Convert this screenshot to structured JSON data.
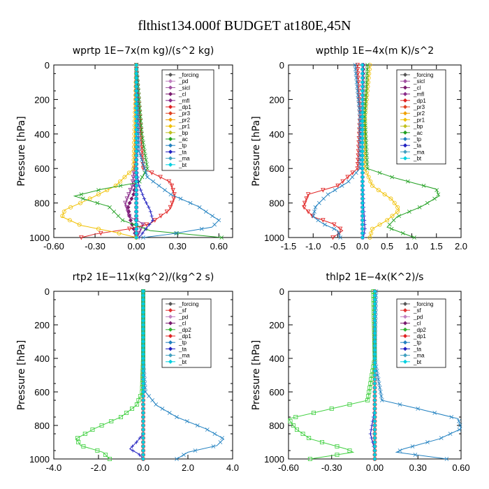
{
  "figure_title": "flthist134.000f  BUDGET at180E,45N",
  "chart_data": [
    {
      "type": "line",
      "title": "wprtp   1E−7x(m kg)/(s^2 kg)",
      "ylabel": "Pressure [hPa]",
      "xlim": [
        -0.6,
        0.7
      ],
      "ylim": [
        1000,
        0
      ],
      "xticks": [
        "-0.60",
        "-0.30",
        "0.00",
        "0.30",
        "0.60"
      ],
      "xtick_values": [
        -0.6,
        -0.3,
        0.0,
        0.3,
        0.6
      ],
      "yticks": [
        "0",
        "200",
        "400",
        "600",
        "800",
        "1000"
      ],
      "legend": [
        "_forcing",
        "_pd",
        "_sicl",
        "_cl",
        "_mfl",
        "_dp1",
        "_pr3",
        "_pr2",
        "_pr1",
        "_bp",
        "_ac",
        "_tp",
        "_ta",
        "_ma",
        "_bt"
      ],
      "series": [
        {
          "name": "_forcing",
          "color": "#6e2f8f",
          "marker": "circle",
          "x": [
            0,
            0,
            0,
            0,
            0,
            0,
            0,
            0
          ],
          "y": [
            0,
            150,
            300,
            450,
            600,
            750,
            900,
            1000
          ]
        },
        {
          "name": "_cl",
          "color": "#7a1a6e",
          "marker": "diamond",
          "x": [
            0,
            0,
            0,
            -0.02,
            -0.06,
            -0.05,
            -0.02,
            0
          ],
          "y": [
            0,
            400,
            650,
            750,
            820,
            880,
            950,
            1000
          ]
        },
        {
          "name": "_mfl",
          "color": "#8a2b8a",
          "marker": "tri",
          "x": [
            0,
            0,
            -0.03,
            -0.08,
            -0.05,
            0.05,
            0.02,
            0
          ],
          "y": [
            0,
            500,
            700,
            800,
            880,
            920,
            970,
            1000
          ]
        },
        {
          "name": "_dp1",
          "color": "#e02020",
          "marker": "tri",
          "x": [
            0,
            0.05,
            0.25,
            0.28,
            0.24,
            0.1,
            -0.05,
            -0.3,
            -0.4
          ],
          "y": [
            0,
            600,
            680,
            760,
            840,
            920,
            950,
            980,
            1000
          ]
        },
        {
          "name": "_pr1",
          "color": "#f0c000",
          "marker": "circle",
          "x": [
            0,
            -0.02,
            -0.15,
            -0.35,
            -0.52,
            -0.54,
            -0.4,
            -0.15,
            0
          ],
          "y": [
            0,
            600,
            700,
            780,
            840,
            880,
            930,
            970,
            1000
          ]
        },
        {
          "name": "_ac",
          "color": "#20a020",
          "marker": "x",
          "x": [
            0,
            0.04,
            0.08,
            0.02,
            -0.25,
            -0.45,
            -0.2,
            -0.1,
            0.1,
            0.62
          ],
          "y": [
            0,
            400,
            600,
            680,
            720,
            760,
            820,
            900,
            960,
            1000
          ]
        },
        {
          "name": "_tp",
          "color": "#2080c0",
          "marker": "x",
          "x": [
            0,
            0.02,
            0.08,
            0.25,
            0.45,
            0.6,
            0.55,
            0.25,
            0.05
          ],
          "y": [
            0,
            500,
            650,
            750,
            820,
            900,
            940,
            980,
            1000
          ]
        },
        {
          "name": "_ta",
          "color": "#2020c0",
          "marker": "plus",
          "x": [
            0,
            0,
            0.02,
            0.06,
            0.1,
            0.12,
            0.06,
            0.02
          ],
          "y": [
            0,
            600,
            700,
            780,
            840,
            900,
            960,
            1000
          ]
        },
        {
          "name": "_bt",
          "color": "#00d0e0",
          "marker": "diamond",
          "x": [
            0,
            0,
            0,
            0
          ],
          "y": [
            0,
            400,
            800,
            1000
          ]
        }
      ]
    },
    {
      "type": "line",
      "title": "wpthlp   1E−4x(m K)/s^2",
      "ylabel": "Pressure [hPa]",
      "xlim": [
        -1.5,
        2.0
      ],
      "ylim": [
        1000,
        0
      ],
      "xticks": [
        "-1.5",
        "-1.0",
        "-0.5",
        "0.0",
        "0.5",
        "1.0",
        "1.5",
        "2.0"
      ],
      "xtick_values": [
        -1.5,
        -1.0,
        -0.5,
        0.0,
        0.5,
        1.0,
        1.5,
        2.0
      ],
      "yticks": [
        "0",
        "200",
        "400",
        "600",
        "800",
        "1000"
      ],
      "legend": [
        "_forcing",
        "_sicl",
        "_cl",
        "_mfl",
        "_dp1",
        "_pr3",
        "_pr2",
        "_pr1",
        "_bp",
        "_ac",
        "_tp",
        "_ta",
        "_ma",
        "_bt"
      ],
      "series": [
        {
          "name": "_forcing",
          "color": "#c080c0",
          "marker": "circle",
          "x": [
            0,
            0,
            0,
            0
          ],
          "y": [
            0,
            400,
            800,
            1000
          ]
        },
        {
          "name": "_cl",
          "color": "#7a1a6e",
          "marker": "diamond",
          "x": [
            0.02,
            0,
            0,
            0,
            0
          ],
          "y": [
            0,
            300,
            600,
            900,
            1000
          ]
        },
        {
          "name": "_dp1",
          "color": "#e02020",
          "marker": "tri",
          "x": [
            -0.1,
            -0.05,
            -0.1,
            -0.5,
            -1.1,
            -1.2,
            -1.0,
            -0.6,
            -0.4,
            -0.6
          ],
          "y": [
            0,
            300,
            600,
            700,
            750,
            820,
            880,
            920,
            960,
            1000
          ]
        },
        {
          "name": "_pr1",
          "color": "#f0c000",
          "marker": "circle",
          "x": [
            0.15,
            0.05,
            0.05,
            0.2,
            0.6,
            0.75,
            0.5,
            0.2,
            0.15
          ],
          "y": [
            0,
            300,
            600,
            700,
            780,
            840,
            900,
            950,
            1000
          ]
        },
        {
          "name": "_ac",
          "color": "#20a020",
          "marker": "x",
          "x": [
            0.1,
            0.05,
            0.1,
            0.6,
            1.5,
            1.55,
            1.2,
            0.7,
            0.5,
            1.05
          ],
          "y": [
            0,
            300,
            600,
            650,
            720,
            760,
            820,
            880,
            940,
            1000
          ]
        },
        {
          "name": "_tp",
          "color": "#2080c0",
          "marker": "x",
          "x": [
            -0.15,
            -0.05,
            -0.05,
            -0.3,
            -0.7,
            -0.95,
            -1.0,
            -0.8,
            -0.5,
            -0.45
          ],
          "y": [
            0,
            300,
            600,
            680,
            750,
            820,
            880,
            920,
            960,
            1000
          ]
        },
        {
          "name": "_ta",
          "color": "#2020c0",
          "marker": "plus",
          "x": [
            0,
            0,
            0,
            0.02,
            0.05,
            0.02
          ],
          "y": [
            0,
            300,
            600,
            800,
            950,
            1000
          ]
        },
        {
          "name": "_bt",
          "color": "#00d0e0",
          "marker": "diamond",
          "x": [
            0,
            0,
            0,
            0
          ],
          "y": [
            0,
            400,
            800,
            1000
          ]
        }
      ]
    },
    {
      "type": "line",
      "title": "rtp2   1E−11x(kg^2)/(kg^2 s)",
      "ylabel": "Pressure [hPa]",
      "xlim": [
        -4.0,
        4.0
      ],
      "ylim": [
        1000,
        0
      ],
      "xticks": [
        "-4.0",
        "-2.0",
        "0.0",
        "2.0",
        "4.0"
      ],
      "xtick_values": [
        -4.0,
        -2.0,
        0.0,
        2.0,
        4.0
      ],
      "yticks": [
        "0",
        "200",
        "400",
        "600",
        "800",
        "1000"
      ],
      "legend": [
        "_forcing",
        "_sf",
        "_pd",
        "_cl",
        "_dp2",
        "_dp1",
        "_tp",
        "_ta",
        "_ma",
        "_bt"
      ],
      "series": [
        {
          "name": "_forcing",
          "color": "#e02020",
          "marker": "circle",
          "x": [
            0,
            0,
            0,
            0
          ],
          "y": [
            0,
            400,
            800,
            1000
          ]
        },
        {
          "name": "_dp1",
          "color": "#40d040",
          "marker": "square",
          "x": [
            0,
            0,
            -0.05,
            -0.3,
            -1.0,
            -2.2,
            -3.0,
            -2.8,
            -1.8,
            -1.5
          ],
          "y": [
            0,
            400,
            600,
            680,
            750,
            820,
            880,
            920,
            960,
            1000
          ]
        },
        {
          "name": "_tp",
          "color": "#2080c0",
          "marker": "x",
          "x": [
            0,
            0,
            0.1,
            0.6,
            1.5,
            2.8,
            3.6,
            3.3,
            2.0,
            1.5
          ],
          "y": [
            0,
            400,
            600,
            680,
            750,
            820,
            880,
            920,
            960,
            1000
          ]
        },
        {
          "name": "_ta",
          "color": "#2020c0",
          "marker": "plus",
          "x": [
            0,
            0,
            0,
            0,
            -0.3,
            -0.6,
            -0.2,
            0
          ],
          "y": [
            0,
            400,
            700,
            850,
            900,
            940,
            970,
            1000
          ]
        },
        {
          "name": "_bt",
          "color": "#00d0e0",
          "marker": "diamond",
          "x": [
            0,
            0,
            0,
            0
          ],
          "y": [
            0,
            400,
            800,
            1000
          ]
        }
      ]
    },
    {
      "type": "line",
      "title": "thlp2   1E−4x(K^2)/s",
      "ylabel": "Pressure [hPa]",
      "xlim": [
        -0.6,
        0.6
      ],
      "ylim": [
        1000,
        0
      ],
      "xticks": [
        "-0.60",
        "-0.30",
        "0.00",
        "0.30",
        "0.60"
      ],
      "xtick_values": [
        -0.6,
        -0.3,
        0.0,
        0.3,
        0.6
      ],
      "yticks": [
        "0",
        "200",
        "400",
        "600",
        "800",
        "1000"
      ],
      "legend": [
        "_forcing",
        "_sf",
        "_pd",
        "_cl",
        "_dp2",
        "_dp1",
        "_tp",
        "_ta",
        "_ma",
        "_bt"
      ],
      "series": [
        {
          "name": "_forcing",
          "color": "#e02020",
          "marker": "circle",
          "x": [
            0,
            0,
            0,
            0
          ],
          "y": [
            0,
            400,
            800,
            1000
          ]
        },
        {
          "name": "_dp1",
          "color": "#40d040",
          "marker": "square",
          "x": [
            -0.01,
            0,
            -0.05,
            -0.3,
            -0.6,
            -0.55,
            -0.45,
            -0.2,
            -0.15,
            -0.45
          ],
          "y": [
            0,
            400,
            650,
            700,
            760,
            820,
            880,
            940,
            960,
            1000
          ]
        },
        {
          "name": "_tp",
          "color": "#2080c0",
          "marker": "x",
          "x": [
            0.01,
            0,
            0.05,
            0.3,
            0.58,
            0.6,
            0.45,
            0.2,
            0.15,
            0.5
          ],
          "y": [
            0,
            400,
            650,
            700,
            760,
            820,
            880,
            940,
            960,
            1000
          ]
        },
        {
          "name": "_ta",
          "color": "#2020c0",
          "marker": "plus",
          "x": [
            0,
            0,
            0,
            -0.03,
            0,
            0
          ],
          "y": [
            0,
            400,
            700,
            850,
            950,
            1000
          ]
        },
        {
          "name": "_bt",
          "color": "#00d0e0",
          "marker": "diamond",
          "x": [
            0,
            0,
            0,
            0
          ],
          "y": [
            0,
            400,
            800,
            1000
          ]
        }
      ]
    }
  ],
  "legend_colors": {
    "_forcing": "#555555",
    "_pd": "#c080c0",
    "_sicl": "#a050a0",
    "_cl": "#7a1a6e",
    "_mfl": "#8a2b8a",
    "_dp1": "#e02020",
    "_pr3": "#e04020",
    "_pr2": "#f0a000",
    "_pr1": "#f0c000",
    "_bp": "#c0c020",
    "_ac": "#20a020",
    "_tp": "#2080c0",
    "_ta": "#2020c0",
    "_ma": "#40a0c0",
    "_bt": "#00d0e0",
    "_sf": "#e03030",
    "_dp2": "#30b030"
  }
}
